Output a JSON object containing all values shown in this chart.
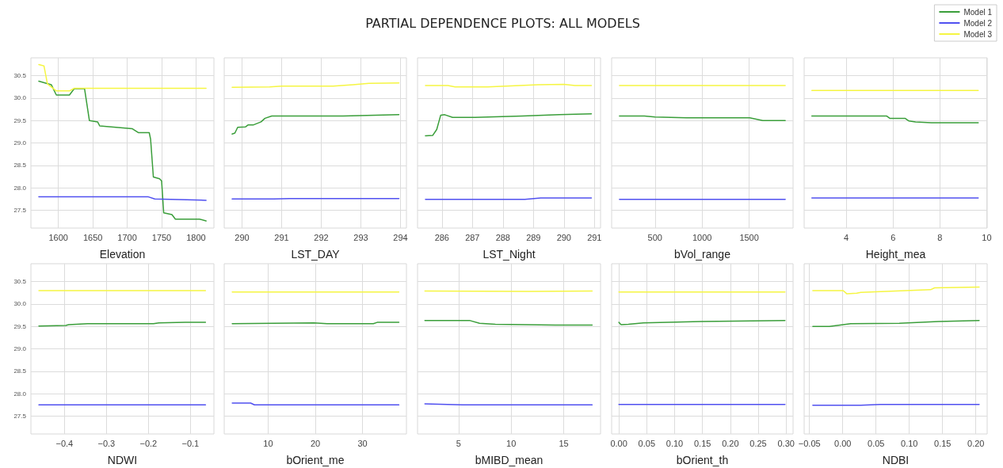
{
  "chart_data": [
    {
      "type": "line",
      "xlabel": "Elevation",
      "grid": true,
      "xlim": [
        1560,
        1826
      ],
      "xticks": [
        1600,
        1650,
        1700,
        1750,
        1800
      ],
      "ylim": [
        27.1,
        30.9
      ],
      "yticks": [
        27.5,
        {
          "value": 28,
          "label": "28.0"
        },
        28.5,
        {
          "value": 29,
          "label": "29.0"
        },
        29.5,
        {
          "value": 30,
          "label": "30.0"
        },
        30.5
      ],
      "series": [
        {
          "color": "#3a9e3a",
          "x": [
            1571.5,
            1589.6,
            1597,
            1616,
            1623,
            1638,
            1645,
            1657,
            1660,
            1707,
            1716,
            1732,
            1734,
            1738,
            1747,
            1750,
            1753,
            1765,
            1770,
            1805,
            1814.6
          ],
          "values": [
            30.38,
            30.3,
            30.07,
            30.07,
            30.21,
            30.21,
            29.5,
            29.47,
            29.38,
            29.32,
            29.23,
            29.23,
            29.08,
            28.24,
            28.2,
            28.15,
            27.44,
            27.4,
            27.3,
            27.3,
            27.26
          ]
        },
        {
          "color": "#5050f0",
          "x": [
            1571.5,
            1730,
            1740,
            1814.6
          ],
          "values": [
            27.8,
            27.8,
            27.75,
            27.72
          ]
        },
        {
          "color": "#f5f542",
          "x": [
            1571.5,
            1579,
            1584,
            1597,
            1616,
            1623,
            1814.6
          ],
          "values": [
            30.75,
            30.72,
            30.32,
            30.16,
            30.16,
            30.22,
            30.22
          ]
        }
      ]
    },
    {
      "type": "line",
      "xlabel": "LST_DAY",
      "tick_labels": "x",
      "grid": true,
      "xlim": [
        289.55,
        294.15
      ],
      "xticks": [
        290,
        291,
        292,
        293,
        294
      ],
      "ylim": [
        27.1,
        30.9
      ],
      "yticks": [
        27.5,
        28,
        28.5,
        29,
        29.5,
        30,
        30.5
      ],
      "series": [
        {
          "color": "#3a9e3a",
          "x": [
            289.75,
            289.82,
            289.89,
            290.09,
            290.15,
            290.28,
            290.48,
            290.58,
            290.75,
            292.55,
            293.96
          ],
          "values": [
            29.2,
            29.22,
            29.35,
            29.36,
            29.4,
            29.4,
            29.47,
            29.55,
            29.6,
            29.6,
            29.63
          ]
        },
        {
          "color": "#5050f0",
          "x": [
            289.75,
            290.8,
            291.2,
            293.96
          ],
          "values": [
            27.75,
            27.75,
            27.76,
            27.76
          ]
        },
        {
          "color": "#f5f542",
          "x": [
            289.75,
            290.7,
            291,
            292.3,
            292.8,
            293.2,
            293.96
          ],
          "values": [
            30.24,
            30.25,
            30.27,
            30.27,
            30.3,
            30.33,
            30.34
          ]
        }
      ]
    },
    {
      "type": "line",
      "title": "PARTIAL DEPENDENCE PLOTS: ALL MODELS",
      "xlabel": "LST_Night",
      "tick_labels": "x",
      "grid": true,
      "xlim": [
        285.2,
        291.2
      ],
      "xticks": [
        286,
        287,
        288,
        289,
        290,
        291
      ],
      "ylim": [
        27.1,
        30.9
      ],
      "yticks": [
        27.5,
        28,
        28.5,
        29,
        29.5,
        30,
        30.5
      ],
      "series": [
        {
          "color": "#3a9e3a",
          "x": [
            285.46,
            285.7,
            285.83,
            285.96,
            286.09,
            286.35,
            287.08,
            288.64,
            289.85,
            290.9
          ],
          "values": [
            29.16,
            29.17,
            29.3,
            29.62,
            29.63,
            29.57,
            29.57,
            29.6,
            29.63,
            29.65
          ]
        },
        {
          "color": "#5050f0",
          "x": [
            285.46,
            288.72,
            289.24,
            290.9
          ],
          "values": [
            27.74,
            27.74,
            27.77,
            27.77
          ]
        },
        {
          "color": "#f5f542",
          "x": [
            285.46,
            286.2,
            286.43,
            287.5,
            289.15,
            290,
            290.36,
            290.9
          ],
          "values": [
            30.28,
            30.28,
            30.25,
            30.25,
            30.3,
            30.31,
            30.28,
            30.28
          ]
        }
      ]
    },
    {
      "type": "line",
      "xlabel": "bVol_range",
      "tick_labels": "x",
      "grid": true,
      "xlim": [
        39,
        1966
      ],
      "xticks": [
        500,
        1000,
        1500
      ],
      "ylim": [
        27.1,
        30.9
      ],
      "yticks": [
        27.5,
        28,
        28.5,
        29,
        29.5,
        30,
        30.5
      ],
      "series": [
        {
          "color": "#3a9e3a",
          "x": [
            122,
            387,
            500,
            835,
            1505,
            1645,
            1883
          ],
          "values": [
            29.6,
            29.6,
            29.58,
            29.56,
            29.56,
            29.5,
            29.5
          ]
        },
        {
          "color": "#5050f0",
          "x": [
            122,
            1883
          ],
          "values": [
            27.74,
            27.74
          ]
        },
        {
          "color": "#f5f542",
          "x": [
            122,
            1883
          ],
          "values": [
            30.28,
            30.28
          ]
        }
      ]
    },
    {
      "type": "line",
      "xlabel": "Height_mea",
      "tick_labels": "x",
      "legend": "top right",
      "grid": true,
      "xlim": [
        2.2,
        10.02
      ],
      "xticks": [
        4,
        6,
        8,
        10
      ],
      "ylim": [
        27.1,
        30.9
      ],
      "yticks": [
        27.5,
        28,
        28.5,
        29,
        29.5,
        30,
        30.5
      ],
      "series": [
        {
          "name": "Model 1",
          "color": "#3a9e3a",
          "x": [
            2.53,
            5.73,
            5.86,
            6.51,
            6.68,
            6.96,
            7.64,
            9.64
          ],
          "values": [
            29.6,
            29.6,
            29.55,
            29.55,
            29.49,
            29.47,
            29.45,
            29.45
          ]
        },
        {
          "name": "Model 2",
          "color": "#5050f0",
          "x": [
            2.53,
            9.64
          ],
          "values": [
            27.77,
            27.77
          ]
        },
        {
          "name": "Model 3",
          "color": "#f5f542",
          "x": [
            2.53,
            9.64
          ],
          "values": [
            30.17,
            30.17
          ]
        }
      ]
    },
    {
      "type": "line",
      "xlabel": "NDWI",
      "grid": true,
      "xlim": [
        -0.48,
        -0.044
      ],
      "xticks": [
        {
          "value": -0.4,
          "label": "−0.4"
        },
        {
          "value": -0.3,
          "label": "−0.3"
        },
        {
          "value": -0.2,
          "label": "−0.2"
        },
        {
          "value": -0.1,
          "label": "−0.1"
        }
      ],
      "ylim": [
        27.1,
        30.9
      ],
      "yticks": [
        27.5,
        {
          "value": 28,
          "label": "28.0"
        },
        28.5,
        {
          "value": 29,
          "label": "29.0"
        },
        29.5,
        {
          "value": 30,
          "label": "30.0"
        },
        30.5
      ],
      "series": [
        {
          "color": "#3a9e3a",
          "x": [
            -0.461,
            -0.397,
            -0.39,
            -0.345,
            -0.188,
            -0.175,
            -0.112,
            -0.064
          ],
          "values": [
            29.51,
            29.52,
            29.54,
            29.56,
            29.56,
            29.58,
            29.59,
            29.59
          ]
        },
        {
          "color": "#5050f0",
          "x": [
            -0.461,
            -0.064
          ],
          "values": [
            27.75,
            27.75
          ]
        },
        {
          "color": "#f5f542",
          "x": [
            -0.461,
            -0.064
          ],
          "values": [
            30.3,
            30.3
          ]
        }
      ]
    },
    {
      "type": "line",
      "xlabel": "bOrient_me",
      "tick_labels": "x",
      "grid": true,
      "xlim": [
        0.7,
        39.3
      ],
      "xticks": [
        10,
        20,
        30
      ],
      "ylim": [
        27.1,
        30.9
      ],
      "yticks": [
        27.5,
        28,
        28.5,
        29,
        29.5,
        30,
        30.5
      ],
      "series": [
        {
          "color": "#3a9e3a",
          "x": [
            2.4,
            19.7,
            22.5,
            32.3,
            33.1,
            37.7
          ],
          "values": [
            29.56,
            29.58,
            29.56,
            29.56,
            29.59,
            29.59
          ]
        },
        {
          "color": "#5050f0",
          "x": [
            2.4,
            6.3,
            7.1,
            37.7
          ],
          "values": [
            27.79,
            27.79,
            27.75,
            27.75
          ]
        },
        {
          "color": "#f5f542",
          "x": [
            2.4,
            37.7
          ],
          "values": [
            30.27,
            30.27
          ]
        }
      ]
    },
    {
      "type": "line",
      "xlabel": "bMIBD_mean",
      "tick_labels": "x",
      "grid": true,
      "xlim": [
        1.1,
        18.5
      ],
      "xticks": [
        5,
        10,
        15
      ],
      "ylim": [
        27.1,
        30.9
      ],
      "yticks": [
        27.5,
        28,
        28.5,
        29,
        29.5,
        30,
        30.5
      ],
      "series": [
        {
          "color": "#3a9e3a",
          "x": [
            1.8,
            6.1,
            7,
            8.5,
            14.2,
            17.7
          ],
          "values": [
            29.63,
            29.63,
            29.57,
            29.55,
            29.53,
            29.53
          ]
        },
        {
          "color": "#5050f0",
          "x": [
            1.8,
            5.4,
            17.7
          ],
          "values": [
            27.77,
            27.75,
            27.75
          ]
        },
        {
          "color": "#f5f542",
          "x": [
            1.8,
            11.7,
            17.7
          ],
          "values": [
            30.29,
            30.28,
            30.29
          ]
        }
      ]
    },
    {
      "type": "line",
      "xlabel": "bOrient_th",
      "tick_labels": "x",
      "grid": true,
      "xlim": [
        -0.013,
        0.3125
      ],
      "xticks": [
        {
          "value": 0,
          "label": "0.00"
        },
        0.05,
        {
          "value": 0.1,
          "label": "0.10"
        },
        0.15,
        {
          "value": 0.2,
          "label": "0.20"
        },
        0.25,
        {
          "value": 0.3,
          "label": "0.30"
        }
      ],
      "ylim": [
        27.1,
        30.9
      ],
      "yticks": [
        27.5,
        28,
        28.5,
        29,
        29.5,
        30,
        30.5
      ],
      "series": [
        {
          "color": "#3a9e3a",
          "x": [
            0,
            0.004,
            0.017,
            0.044,
            0.148,
            0.298
          ],
          "values": [
            29.59,
            29.54,
            29.55,
            29.58,
            29.61,
            29.63
          ]
        },
        {
          "color": "#5050f0",
          "x": [
            0,
            0.298
          ],
          "values": [
            27.76,
            27.76
          ]
        },
        {
          "color": "#f5f542",
          "x": [
            0,
            0.298
          ],
          "values": [
            30.27,
            30.27
          ]
        }
      ]
    },
    {
      "type": "line",
      "xlabel": "NDBI",
      "tick_labels": "x",
      "grid": true,
      "xlim": [
        -0.058,
        0.217
      ],
      "xticks": [
        {
          "value": -0.05,
          "label": "−0.05"
        },
        {
          "value": 0,
          "label": "0.00"
        },
        0.05,
        {
          "value": 0.1,
          "label": "0.10"
        },
        0.15,
        {
          "value": 0.2,
          "label": "0.20"
        }
      ],
      "ylim": [
        27.1,
        30.9
      ],
      "yticks": [
        27.5,
        28,
        28.5,
        29,
        29.5,
        30,
        30.5
      ],
      "series": [
        {
          "color": "#3a9e3a",
          "x": [
            -0.045,
            -0.02,
            0.012,
            0.085,
            0.144,
            0.205
          ],
          "values": [
            29.5,
            29.5,
            29.56,
            29.57,
            29.61,
            29.63
          ]
        },
        {
          "color": "#5050f0",
          "x": [
            -0.045,
            0.027,
            0.056,
            0.205
          ],
          "values": [
            27.74,
            27.74,
            27.76,
            27.76
          ]
        },
        {
          "color": "#f5f542",
          "x": [
            -0.045,
            0.0007,
            0.006,
            0.021,
            0.027,
            0.132,
            0.138,
            0.205
          ],
          "values": [
            30.3,
            30.3,
            30.23,
            30.24,
            30.26,
            30.32,
            30.36,
            30.38
          ]
        }
      ]
    }
  ]
}
